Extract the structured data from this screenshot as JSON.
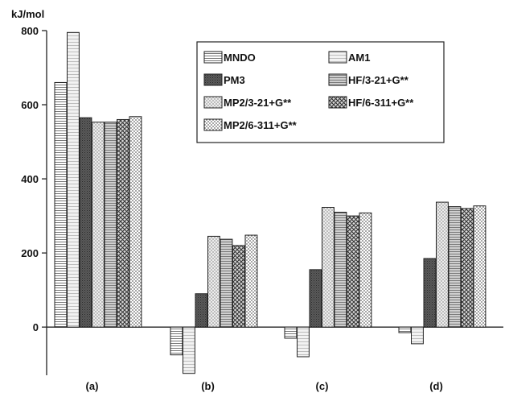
{
  "chart_data": {
    "type": "bar",
    "ylabel": "kJ/mol",
    "ylim": [
      -130,
      800
    ],
    "yticks": [
      0,
      200,
      400,
      600,
      800
    ],
    "grid": false,
    "legend_position": "top-right",
    "categories": [
      "(a)",
      "(b)",
      "(c)",
      "(d)"
    ],
    "series": [
      {
        "name": "MNDO",
        "values": [
          660,
          -75,
          -30,
          -15
        ],
        "pattern": "horizontal-lines"
      },
      {
        "name": "AM1",
        "values": [
          795,
          -125,
          -80,
          -45
        ],
        "pattern": "light-horizontal-lines"
      },
      {
        "name": "PM3",
        "values": [
          565,
          90,
          155,
          185
        ],
        "pattern": "dense-dark-hatch"
      },
      {
        "name": "MP2/3-21+G**",
        "values": [
          553,
          245,
          323,
          337
        ],
        "pattern": "checker-light"
      },
      {
        "name": "HF/3-21+G**",
        "values": [
          553,
          237,
          310,
          325
        ],
        "pattern": "horizontal-lines-medium"
      },
      {
        "name": "HF/6-311+G**",
        "values": [
          560,
          220,
          300,
          320
        ],
        "pattern": "crosshatch-dark"
      },
      {
        "name": "MP2/6-311+G**",
        "values": [
          568,
          248,
          308,
          327
        ],
        "pattern": "dots"
      }
    ]
  }
}
